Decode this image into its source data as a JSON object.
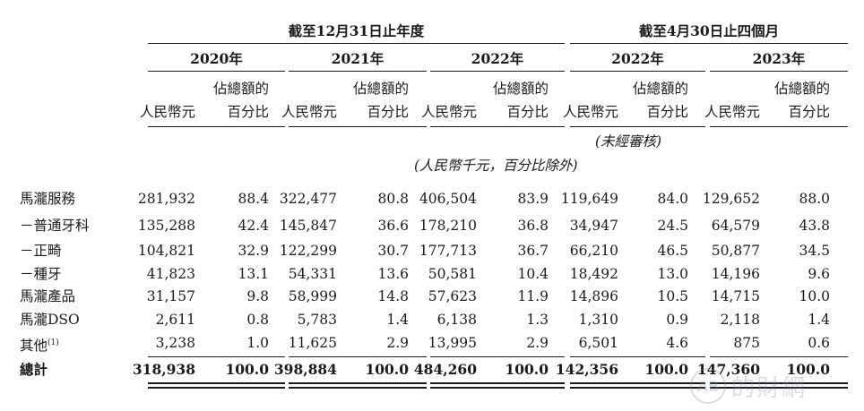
{
  "header": {
    "period_fy": "截至12月31日止年度",
    "period_4m": "截至4月30日止四個月",
    "unaudited": "(未經審核)",
    "units_note": "(人民幣千元，百分比除外)"
  },
  "columns": [
    {
      "year": "2020年",
      "amount_label": "人民幣千元",
      "amount_line1": "人民幣元",
      "pct_line1": "佔總額的",
      "pct_line2": "百分比"
    },
    {
      "year": "2021年",
      "amount_line1": "人民幣元",
      "pct_line1": "佔總額的",
      "pct_line2": "百分比"
    },
    {
      "year": "2022年",
      "amount_line1": "人民幣元",
      "pct_line1": "佔總額的",
      "pct_line2": "百分比"
    },
    {
      "year": "2022年",
      "amount_line1": "人民幣元",
      "pct_line1": "佔總額的",
      "pct_line2": "百分比"
    },
    {
      "year": "2023年",
      "amount_line1": "人民幣元",
      "pct_line1": "佔總額的",
      "pct_line2": "百分比"
    }
  ],
  "rows": [
    {
      "label": "馬瀧服務",
      "values": [
        "281,932",
        "88.4",
        "322,477",
        "80.8",
        "406,504",
        "83.9",
        "119,649",
        "84.0",
        "129,652",
        "88.0"
      ]
    },
    {
      "label": "－普通牙科",
      "values": [
        "135,288",
        "42.4",
        "145,847",
        "36.6",
        "178,210",
        "36.8",
        "34,947",
        "24.5",
        "64,579",
        "43.8"
      ]
    },
    {
      "label": "－正畸",
      "values": [
        "104,821",
        "32.9",
        "122,299",
        "30.7",
        "177,713",
        "36.7",
        "66,210",
        "46.5",
        "50,877",
        "34.5"
      ]
    },
    {
      "label": "－種牙",
      "values": [
        "41,823",
        "13.1",
        "54,331",
        "13.6",
        "50,581",
        "10.4",
        "18,492",
        "13.0",
        "14,196",
        "9.6"
      ]
    },
    {
      "label": "馬瀧產品",
      "values": [
        "31,157",
        "9.8",
        "58,999",
        "14.8",
        "57,623",
        "11.9",
        "14,896",
        "10.5",
        "14,715",
        "10.0"
      ]
    },
    {
      "label": "馬瀧DSO",
      "values": [
        "2,611",
        "0.8",
        "5,783",
        "1.4",
        "6,138",
        "1.3",
        "1,310",
        "0.9",
        "2,118",
        "1.4"
      ]
    },
    {
      "label": "其他",
      "label_sup": "(1)",
      "values": [
        "3,238",
        "1.0",
        "11,625",
        "2.9",
        "13,995",
        "2.9",
        "6,501",
        "4.6",
        "875",
        "0.6"
      ]
    }
  ],
  "total": {
    "label": "總計",
    "values": [
      "318,938",
      "100.0",
      "398,884",
      "100.0",
      "484,260",
      "100.0",
      "142,356",
      "100.0",
      "147,360",
      "100.0"
    ]
  },
  "watermark": {
    "mark": "AB",
    "text": "的財網"
  }
}
